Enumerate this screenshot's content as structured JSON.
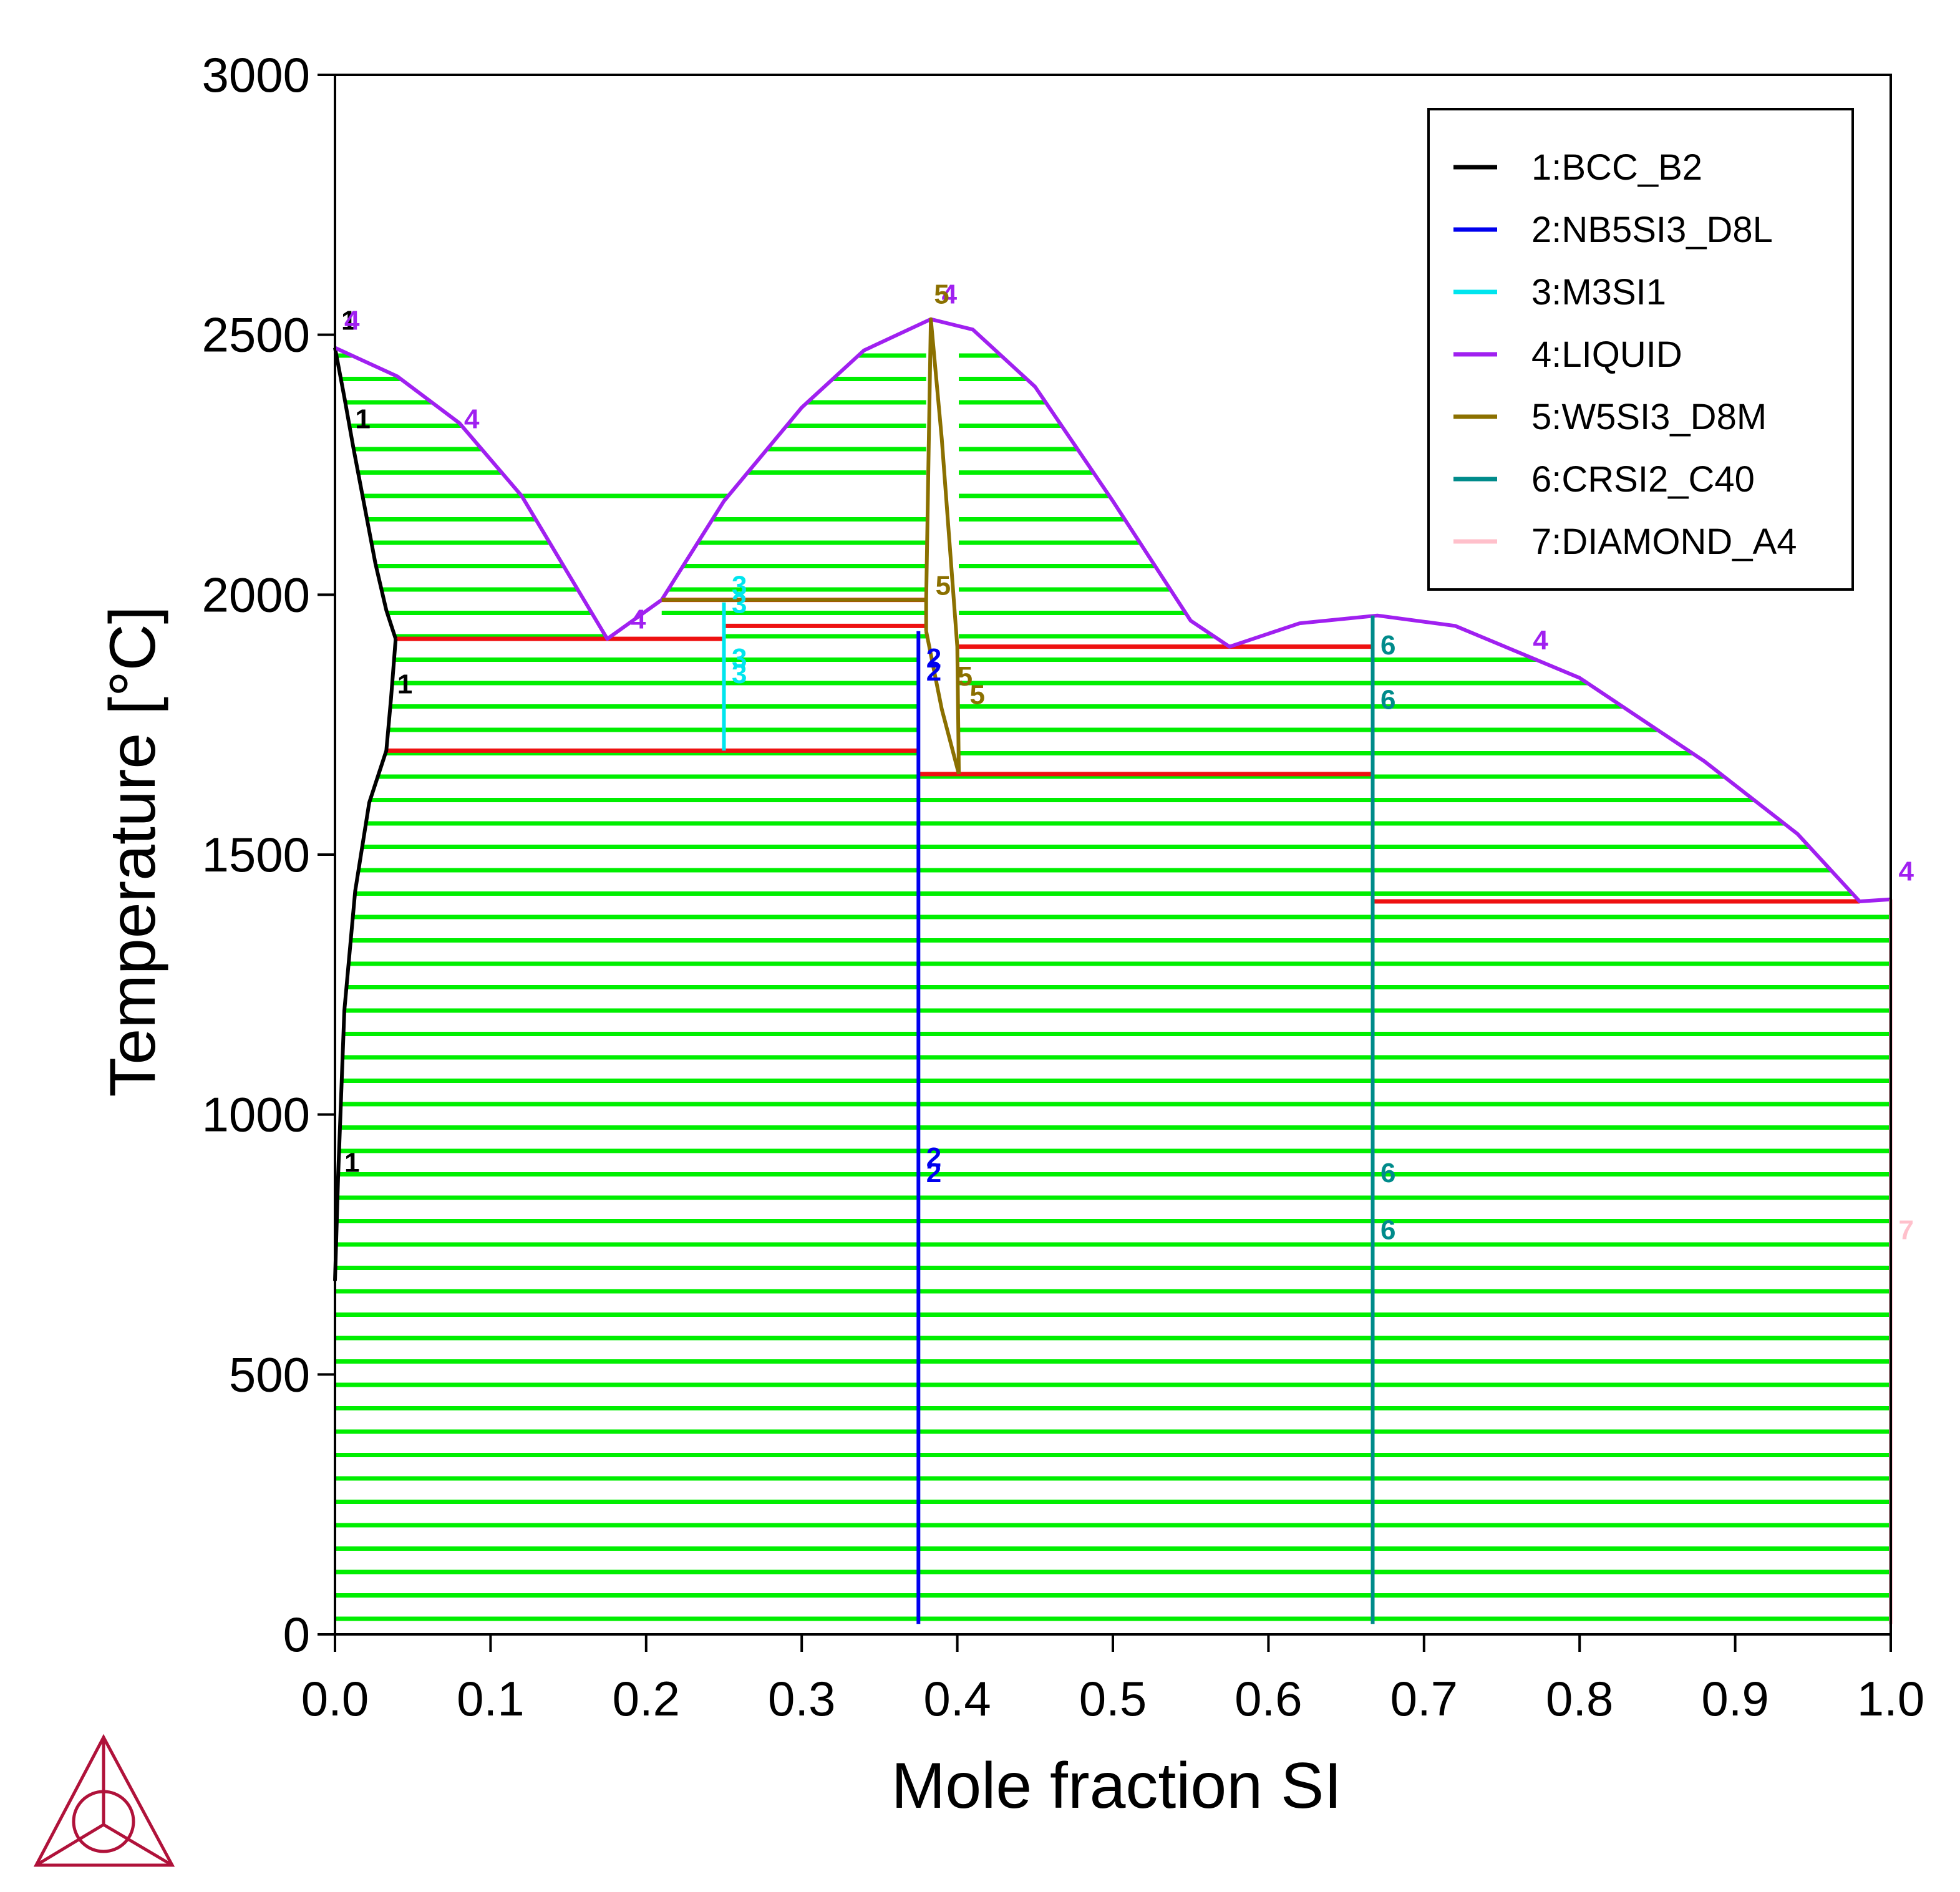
{
  "chart_data": {
    "type": "line",
    "title": "",
    "xlabel": "Mole fraction SI",
    "ylabel": "Temperature [°C]",
    "xlim": [
      0,
      1
    ],
    "ylim": [
      0,
      3000
    ],
    "x_ticks": [
      "0.0",
      "0.1",
      "0.2",
      "0.3",
      "0.4",
      "0.5",
      "0.6",
      "0.7",
      "0.8",
      "0.9",
      "1.0"
    ],
    "y_ticks": [
      "0",
      "500",
      "1000",
      "1500",
      "2000",
      "2500",
      "3000"
    ],
    "grid": false,
    "legend_position": "top-right",
    "tie_line_color": "#00ee00",
    "invariant_line_color": "#ee1111",
    "series": [
      {
        "name": "1:BCC_B2",
        "color": "#000000",
        "lines": [
          [
            [
              0.0,
              2475
            ],
            [
              0.006,
              2380
            ],
            [
              0.012,
              2280
            ],
            [
              0.019,
              2170
            ],
            [
              0.026,
              2060
            ],
            [
              0.033,
              1970
            ],
            [
              0.039,
              1915
            ]
          ],
          [
            [
              0.039,
              1915
            ],
            [
              0.036,
              1800
            ],
            [
              0.033,
              1700
            ],
            [
              0.022,
              1600
            ],
            [
              0.013,
              1430
            ],
            [
              0.006,
              1200
            ],
            [
              0.002,
              880
            ],
            [
              0.0,
              680
            ]
          ]
        ]
      },
      {
        "name": "2:NB5SI3_D8L",
        "color": "#0000ee",
        "lines": [
          [
            [
              0.375,
              1930
            ],
            [
              0.375,
              20
            ]
          ]
        ]
      },
      {
        "name": "3:M3SI1",
        "color": "#00e5ee",
        "lines": [
          [
            [
              0.25,
              1985
            ],
            [
              0.25,
              1700
            ]
          ]
        ]
      },
      {
        "name": "4:LIQUID",
        "color": "#a020f0",
        "lines": [
          [
            [
              0.0,
              2475
            ],
            [
              0.04,
              2420
            ],
            [
              0.08,
              2330
            ],
            [
              0.12,
              2190
            ],
            [
              0.15,
              2040
            ],
            [
              0.175,
              1915
            ],
            [
              0.21,
              1990
            ],
            [
              0.25,
              2180
            ],
            [
              0.3,
              2360
            ],
            [
              0.34,
              2470
            ],
            [
              0.383,
              2530
            ],
            [
              0.41,
              2510
            ],
            [
              0.45,
              2400
            ],
            [
              0.5,
              2180
            ],
            [
              0.55,
              1950
            ],
            [
              0.575,
              1900
            ],
            [
              0.62,
              1945
            ],
            [
              0.67,
              1960
            ],
            [
              0.72,
              1940
            ],
            [
              0.8,
              1840
            ],
            [
              0.88,
              1680
            ],
            [
              0.94,
              1540
            ],
            [
              0.98,
              1410
            ],
            [
              1.0,
              1414
            ]
          ]
        ]
      },
      {
        "name": "5:W5SI3_D8M",
        "color": "#8b7000",
        "lines": [
          [
            [
              0.21,
              1990
            ],
            [
              0.38,
              1990
            ]
          ],
          [
            [
              0.38,
              1930
            ],
            [
              0.38,
              1990
            ],
            [
              0.383,
              2530
            ],
            [
              0.39,
              2300
            ],
            [
              0.4,
              1900
            ],
            [
              0.401,
              1655
            ]
          ],
          [
            [
              0.38,
              1930
            ],
            [
              0.39,
              1780
            ],
            [
              0.401,
              1655
            ]
          ]
        ]
      },
      {
        "name": "6:CRSI2_C40",
        "color": "#008b8b",
        "lines": [
          [
            [
              0.667,
              1960
            ],
            [
              0.667,
              20
            ]
          ]
        ]
      },
      {
        "name": "7:DIAMOND_A4",
        "color": "#ffc0cb",
        "lines": [
          [
            [
              1.0,
              1414
            ],
            [
              1.0,
              20
            ]
          ]
        ]
      }
    ],
    "invariant_lines": [
      {
        "y": 1915,
        "x0": 0.039,
        "x1": 0.25
      },
      {
        "y": 1990,
        "x0": 0.21,
        "x1": 0.38
      },
      {
        "y": 1940,
        "x0": 0.25,
        "x1": 0.38
      },
      {
        "y": 1900,
        "x0": 0.401,
        "x1": 0.667
      },
      {
        "y": 1700,
        "x0": 0.033,
        "x1": 0.375
      },
      {
        "y": 1655,
        "x0": 0.375,
        "x1": 0.667
      },
      {
        "y": 1410,
        "x0": 0.667,
        "x1": 0.98
      }
    ],
    "phase_labels": [
      {
        "text": "1",
        "series": 0,
        "x": 0.013,
        "y": 2320
      },
      {
        "text": "1",
        "series": 0,
        "x": 0.04,
        "y": 1810
      },
      {
        "text": "1",
        "series": 0,
        "x": 0.006,
        "y": 890
      },
      {
        "text": "1",
        "series": 0,
        "x": 0.004,
        "y": 2510
      },
      {
        "text": "4",
        "series": 3,
        "x": 0.006,
        "y": 2510
      },
      {
        "text": "4",
        "series": 3,
        "x": 0.083,
        "y": 2320
      },
      {
        "text": "4",
        "series": 3,
        "x": 0.19,
        "y": 1935
      },
      {
        "text": "4",
        "series": 3,
        "x": 0.77,
        "y": 1895
      },
      {
        "text": "4",
        "series": 3,
        "x": 1.005,
        "y": 1450
      },
      {
        "text": "4",
        "series": 3,
        "x": 0.39,
        "y": 2560
      },
      {
        "text": "5",
        "series": 4,
        "x": 0.385,
        "y": 2560
      },
      {
        "text": "5",
        "series": 4,
        "x": 0.386,
        "y": 2000
      },
      {
        "text": "5",
        "series": 4,
        "x": 0.4,
        "y": 1825
      },
      {
        "text": "5",
        "series": 4,
        "x": 0.408,
        "y": 1790
      },
      {
        "text": "3",
        "series": 2,
        "x": 0.255,
        "y": 2000
      },
      {
        "text": "3",
        "series": 2,
        "x": 0.255,
        "y": 1965
      },
      {
        "text": "3",
        "series": 2,
        "x": 0.255,
        "y": 1860
      },
      {
        "text": "3",
        "series": 2,
        "x": 0.255,
        "y": 1830
      },
      {
        "text": "2",
        "series": 1,
        "x": 0.38,
        "y": 1860
      },
      {
        "text": "2",
        "series": 1,
        "x": 0.38,
        "y": 1835
      },
      {
        "text": "2",
        "series": 1,
        "x": 0.38,
        "y": 900
      },
      {
        "text": "2",
        "series": 1,
        "x": 0.38,
        "y": 870
      },
      {
        "text": "6",
        "series": 5,
        "x": 0.672,
        "y": 1885
      },
      {
        "text": "6",
        "series": 5,
        "x": 0.672,
        "y": 1780
      },
      {
        "text": "6",
        "series": 5,
        "x": 0.672,
        "y": 870
      },
      {
        "text": "6",
        "series": 5,
        "x": 0.672,
        "y": 760
      },
      {
        "text": "7",
        "series": 6,
        "x": 1.005,
        "y": 760
      }
    ]
  }
}
